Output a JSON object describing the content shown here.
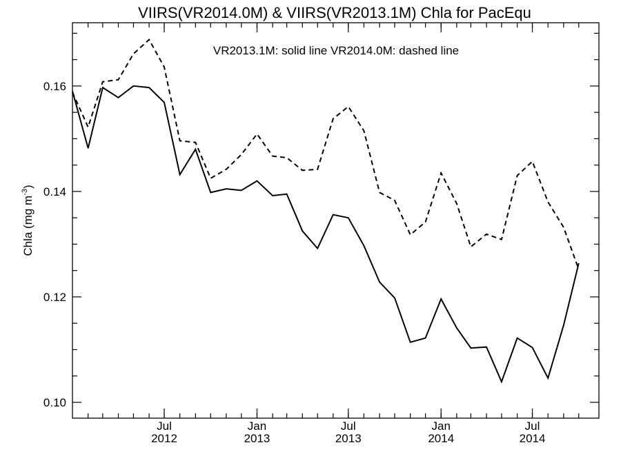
{
  "chart_data": {
    "type": "line",
    "title": "VIIRS(VR2014.0M) & VIIRS(VR2013.1M)  Chla for PacEqu",
    "annotation": "VR2013.1M: solid line   VR2014.0M: dashed line",
    "ylabel": "Chla (mg m",
    "ylabel_superscript": "-3",
    "ylabel_suffix": ")",
    "xlabel": "",
    "ylim": [
      0.097,
      0.172
    ],
    "xlim": [
      "2012-01-01",
      "2014-11-10"
    ],
    "yticks": [
      0.1,
      0.12,
      0.14,
      0.16
    ],
    "ytick_labels": [
      "0.10",
      "0.12",
      "0.14",
      "0.16"
    ],
    "xticks": [
      {
        "date": "2012-07-01",
        "month": "Jul",
        "year": "2012"
      },
      {
        "date": "2013-01-01",
        "month": "Jan",
        "year": "2013"
      },
      {
        "date": "2013-07-01",
        "month": "Jul",
        "year": "2013"
      },
      {
        "date": "2014-01-01",
        "month": "Jan",
        "year": "2014"
      },
      {
        "date": "2014-07-01",
        "month": "Jul",
        "year": "2014"
      }
    ],
    "x": [
      "2012-01-01",
      "2012-02-01",
      "2012-03-01",
      "2012-04-01",
      "2012-05-01",
      "2012-06-01",
      "2012-07-01",
      "2012-08-01",
      "2012-09-01",
      "2012-10-01",
      "2012-11-01",
      "2012-12-01",
      "2013-01-01",
      "2013-02-01",
      "2013-03-01",
      "2013-04-01",
      "2013-05-01",
      "2013-06-01",
      "2013-07-01",
      "2013-08-01",
      "2013-09-01",
      "2013-10-01",
      "2013-11-01",
      "2013-12-01",
      "2014-01-01",
      "2014-02-01",
      "2014-03-01",
      "2014-04-01",
      "2014-05-01",
      "2014-06-01",
      "2014-07-01",
      "2014-08-01",
      "2014-09-01",
      "2014-10-01"
    ],
    "series": [
      {
        "name": "VR2013.1M",
        "line_style": "solid",
        "values": [
          0.159,
          0.1482,
          0.1597,
          0.1578,
          0.16,
          0.1597,
          0.1569,
          0.1432,
          0.148,
          0.1398,
          0.1405,
          0.1402,
          0.142,
          0.1392,
          0.1395,
          0.1325,
          0.1292,
          0.1356,
          0.135,
          0.1297,
          0.1228,
          0.1198,
          0.1114,
          0.1122,
          0.1196,
          0.1141,
          0.1103,
          0.1105,
          0.1039,
          0.1122,
          0.1104,
          0.1046,
          0.1146,
          0.1264
        ]
      },
      {
        "name": "VR2014.0M",
        "line_style": "dashed",
        "values": [
          0.1588,
          0.1522,
          0.1608,
          0.1612,
          0.1661,
          0.1688,
          0.1636,
          0.1496,
          0.1493,
          0.1425,
          0.1442,
          0.147,
          0.1509,
          0.1467,
          0.1464,
          0.144,
          0.1442,
          0.1538,
          0.1561,
          0.1515,
          0.1398,
          0.1383,
          0.1318,
          0.1342,
          0.1435,
          0.1377,
          0.1295,
          0.1319,
          0.1309,
          0.143,
          0.1457,
          0.138,
          0.1332,
          0.1252
        ]
      }
    ],
    "colors": {
      "line": "#000000",
      "background": "#ffffff"
    }
  }
}
